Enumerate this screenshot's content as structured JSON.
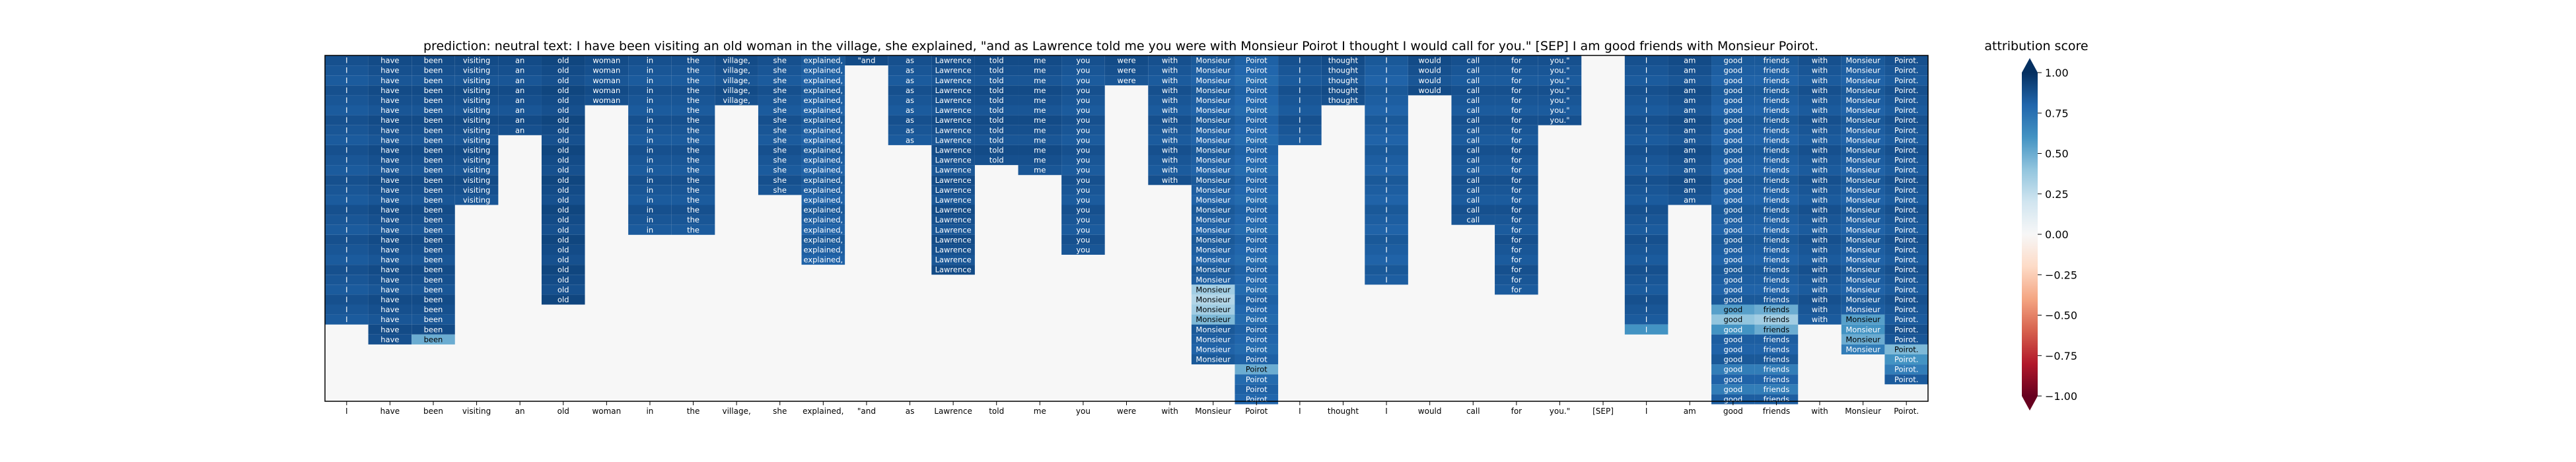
{
  "chart_data": {
    "type": "heatmap",
    "title": "prediction:  neutral     text:  I have been visiting an old woman in the village, she explained, \"and as Lawrence told me you were with Monsieur Poirot I thought I would call for you.\" [SEP] I am good friends with Monsieur Poirot.",
    "x_tick_labels": [
      "I",
      "have",
      "been",
      "visiting",
      "an",
      "old",
      "woman",
      "in",
      "the",
      "village,",
      "she",
      "explained,",
      "\"and",
      "as",
      "Lawrence",
      "told",
      "me",
      "you",
      "were",
      "with",
      "Monsieur",
      "Poirot",
      "I",
      "thought",
      "I",
      "would",
      "call",
      "for",
      "you.\"",
      "[SEP]",
      "I",
      "am",
      "good",
      "friends",
      "with",
      "Monsieur",
      "Poirot."
    ],
    "column_lengths": [
      27,
      29,
      29,
      15,
      8,
      25,
      5,
      18,
      18,
      5,
      14,
      21,
      1,
      9,
      22,
      11,
      12,
      20,
      3,
      13,
      31,
      35,
      9,
      5,
      23,
      4,
      17,
      24,
      7,
      0,
      28,
      15,
      35,
      35,
      27,
      30,
      33
    ],
    "column_strength": [
      0.88,
      0.9,
      0.9,
      0.9,
      0.9,
      0.92,
      0.9,
      0.88,
      0.88,
      0.9,
      0.88,
      0.85,
      0.9,
      0.88,
      0.9,
      0.9,
      0.9,
      0.88,
      0.9,
      0.88,
      0.85,
      0.82,
      0.88,
      0.9,
      0.85,
      0.9,
      0.88,
      0.88,
      0.88,
      0,
      0.88,
      0.9,
      0.85,
      0.85,
      0.88,
      0.85,
      0.88
    ],
    "light_cells": [
      {
        "col": 2,
        "row": 28,
        "value": 0.5
      },
      {
        "col": 20,
        "row": 23,
        "value": 0.35
      },
      {
        "col": 20,
        "row": 24,
        "value": 0.3
      },
      {
        "col": 20,
        "row": 25,
        "value": 0.35
      },
      {
        "col": 20,
        "row": 26,
        "value": 0.45
      },
      {
        "col": 21,
        "row": 31,
        "value": 0.5
      },
      {
        "col": 30,
        "row": 27,
        "value": 0.6
      },
      {
        "col": 32,
        "row": 25,
        "value": 0.55
      },
      {
        "col": 32,
        "row": 26,
        "value": 0.4
      },
      {
        "col": 32,
        "row": 27,
        "value": 0.6
      },
      {
        "col": 32,
        "row": 31,
        "value": 0.7
      },
      {
        "col": 32,
        "row": 33,
        "value": 0.7
      },
      {
        "col": 33,
        "row": 25,
        "value": 0.5
      },
      {
        "col": 33,
        "row": 26,
        "value": 0.35
      },
      {
        "col": 33,
        "row": 27,
        "value": 0.5
      },
      {
        "col": 33,
        "row": 31,
        "value": 0.7
      },
      {
        "col": 33,
        "row": 33,
        "value": 0.7
      },
      {
        "col": 35,
        "row": 26,
        "value": 0.55
      },
      {
        "col": 35,
        "row": 27,
        "value": 0.6
      },
      {
        "col": 35,
        "row": 28,
        "value": 0.5
      },
      {
        "col": 35,
        "row": 29,
        "value": 0.7
      },
      {
        "col": 36,
        "row": 29,
        "value": 0.45
      },
      {
        "col": 36,
        "row": 30,
        "value": 0.6
      },
      {
        "col": 36,
        "row": 31,
        "value": 0.7
      }
    ],
    "colorbar": {
      "title": "attribution score",
      "colormap": "RdBu",
      "ticks": [
        "1.00",
        "0.75",
        "0.50",
        "0.25",
        "0.00",
        "−0.25",
        "−0.50",
        "−0.75",
        "−1.00"
      ],
      "range": [
        -1,
        1
      ]
    }
  }
}
